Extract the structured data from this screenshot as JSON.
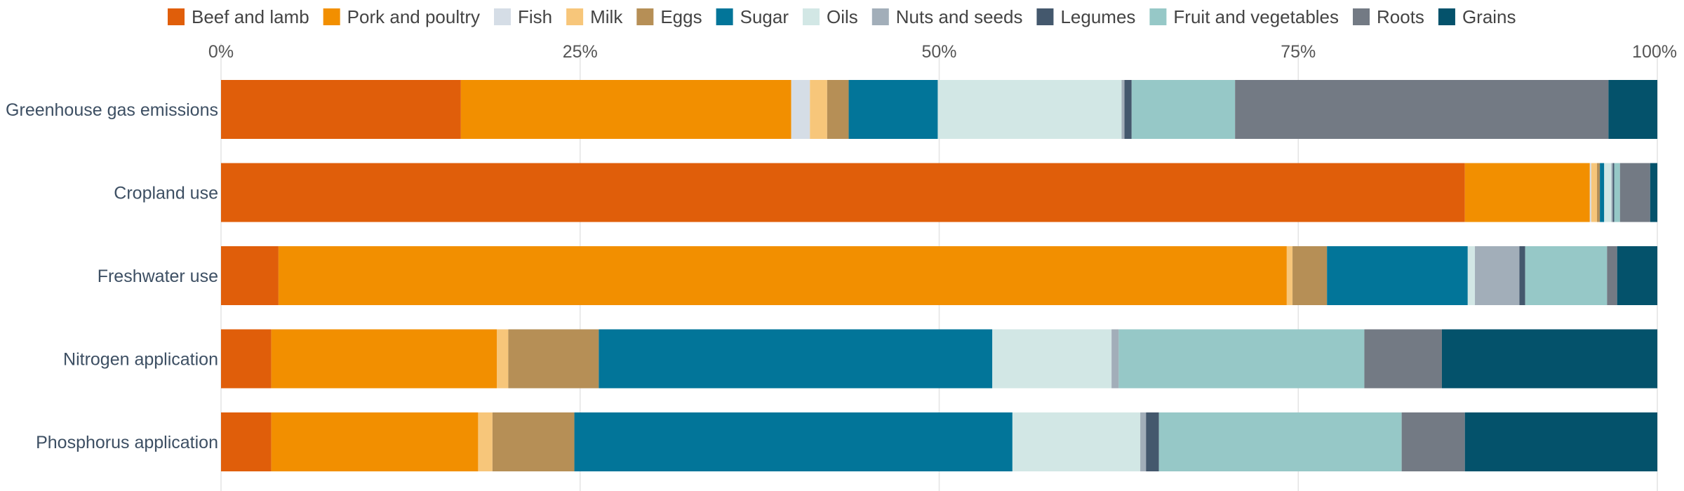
{
  "chart_data": {
    "type": "bar",
    "orientation": "horizontal",
    "stacked": true,
    "xlim": [
      0,
      100
    ],
    "x_ticks": [
      {
        "value": 0,
        "label": "0%"
      },
      {
        "value": 25,
        "label": "25%"
      },
      {
        "value": 50,
        "label": "50%"
      },
      {
        "value": 75,
        "label": "75%"
      },
      {
        "value": 100,
        "label": "100%"
      }
    ],
    "x_axis_position": "top",
    "grid": true,
    "legend_placement": "top",
    "categories": [
      "Greenhouse gas emissions",
      "Cropland use",
      "Freshwater use",
      "Nitrogen application",
      "Phosphorus application"
    ],
    "series": [
      {
        "name": "Beef and lamb",
        "color": "#e05e0a",
        "values": [
          16.7,
          86.6,
          4.0,
          3.5,
          3.5
        ]
      },
      {
        "name": "Pork and poultry",
        "color": "#f28f00",
        "values": [
          23.0,
          8.7,
          70.2,
          15.7,
          14.4
        ]
      },
      {
        "name": "Fish",
        "color": "#d5dde6",
        "values": [
          1.3,
          0.1,
          0.0,
          0.0,
          0.0
        ]
      },
      {
        "name": "Milk",
        "color": "#f7c67a",
        "values": [
          1.2,
          0.4,
          0.4,
          0.8,
          1.0
        ]
      },
      {
        "name": "Eggs",
        "color": "#b68f56",
        "values": [
          1.5,
          0.2,
          2.4,
          6.3,
          5.7
        ]
      },
      {
        "name": "Sugar",
        "color": "#027599",
        "values": [
          6.2,
          0.3,
          9.8,
          27.4,
          30.5
        ]
      },
      {
        "name": "Oils",
        "color": "#d2e7e5",
        "values": [
          12.8,
          0.5,
          0.5,
          8.3,
          8.9
        ]
      },
      {
        "name": "Nuts and seeds",
        "color": "#a2aeb9",
        "values": [
          0.2,
          0.1,
          3.1,
          0.5,
          0.4
        ]
      },
      {
        "name": "Legumes",
        "color": "#44586d",
        "values": [
          0.5,
          0.1,
          0.4,
          0.0,
          0.9
        ]
      },
      {
        "name": "Fruit and vegetables",
        "color": "#96c8c7",
        "values": [
          7.2,
          0.4,
          5.7,
          17.1,
          16.9
        ]
      },
      {
        "name": "Roots",
        "color": "#737a84",
        "values": [
          26.0,
          2.1,
          0.7,
          5.4,
          4.4
        ]
      },
      {
        "name": "Grains",
        "color": "#04526b",
        "values": [
          3.4,
          0.5,
          2.8,
          15.0,
          13.4
        ]
      }
    ]
  }
}
